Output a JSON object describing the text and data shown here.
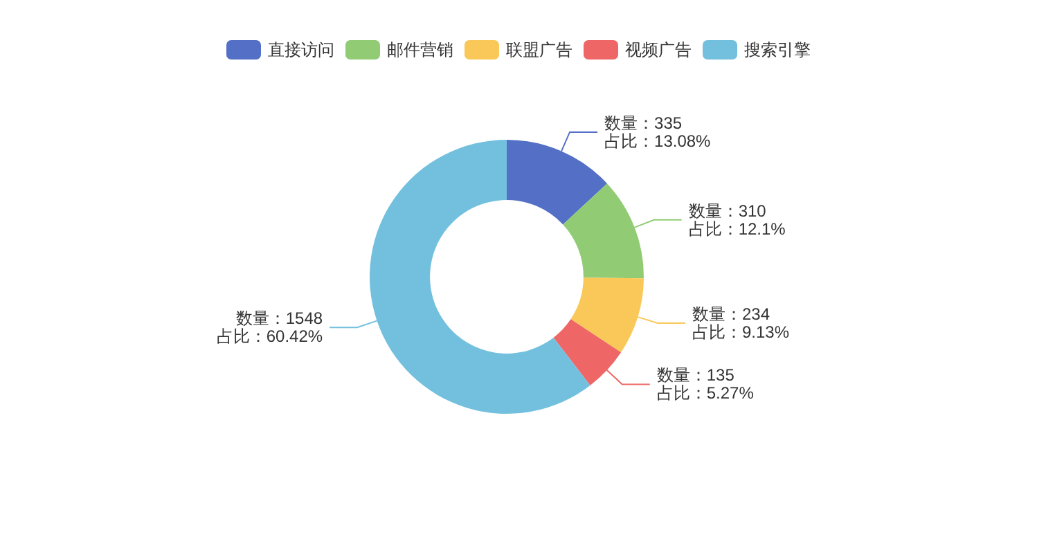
{
  "chart_data": {
    "type": "donut",
    "categories": [
      "直接访问",
      "邮件营销",
      "联盟广告",
      "视频广告",
      "搜索引擎"
    ],
    "values": [
      335,
      310,
      234,
      135,
      1548
    ],
    "colors": [
      "#5470c6",
      "#91cc75",
      "#fac858",
      "#ee6666",
      "#73c0de"
    ],
    "value_labels": [
      "数量：335\n占比：13.08%",
      "数量：310\n占比：12.1%",
      "数量：234\n占比：9.13%",
      "数量：135\n占比：5.27%",
      "数量：1548\n占比：60.42%"
    ],
    "legend": "top"
  }
}
